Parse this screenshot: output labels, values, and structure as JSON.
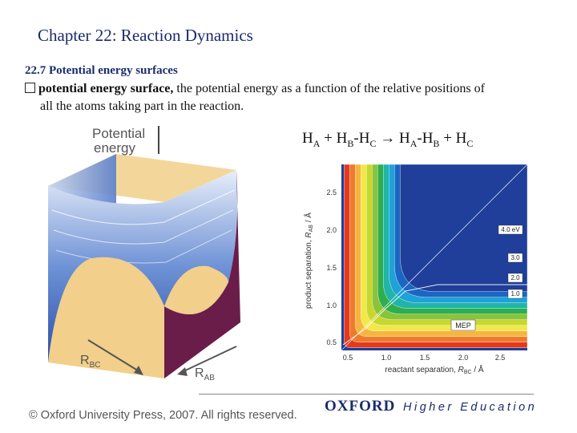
{
  "slide": {
    "title": "Chapter 22: Reaction Dynamics",
    "section": "22.7 Potential energy surfaces",
    "bullet_term": "potential energy surface,",
    "bullet_text_1": " the potential energy as a function of the relative positions of",
    "bullet_text_2": "all the atoms taking part in the reaction."
  },
  "equation": {
    "lhs_a": "H",
    "lhs_a_sub": "A",
    "plus1": " + ",
    "lhs_b": "H",
    "lhs_b_sub": "B",
    "dash1": "-",
    "lhs_c": "H",
    "lhs_c_sub": "C",
    "arrow": " → ",
    "rhs_a": "H",
    "rhs_a_sub": "A",
    "dash2": "-",
    "rhs_b": "H",
    "rhs_b_sub": "B",
    "plus2": " + ",
    "rhs_c": "H",
    "rhs_c_sub": "C"
  },
  "pes_figure": {
    "axis_label_line1": "Potential",
    "axis_label_line2": "energy",
    "rbc_main": "R",
    "rbc_sub": "BC",
    "rab_main": "R",
    "rab_sub": "AB"
  },
  "contour_plot": {
    "y_label_main": "product separation, ",
    "y_label_var": "R",
    "y_label_sub": "AB",
    "y_label_unit": " / Å",
    "x_label_main": "reactant separation, ",
    "x_label_var": "R",
    "x_label_sub": "BC",
    "x_label_unit": " / Å",
    "y_ticks": [
      "2.5",
      "2.0",
      "1.5",
      "1.0",
      "0.5"
    ],
    "x_ticks": [
      "0.5",
      "1.0",
      "1.5",
      "2.0",
      "2.5"
    ],
    "contour_labels": [
      "4.0 eV",
      "3.0",
      "2.0",
      "1.0"
    ],
    "mep_label": "MEP",
    "colors": [
      "#1f3f9a",
      "#1b66c4",
      "#1ea2d8",
      "#20b5a6",
      "#2fae4d",
      "#8ac43a",
      "#c7d72f",
      "#f1e84a",
      "#f6b540",
      "#ef7a2c",
      "#e33a1e"
    ]
  },
  "footer": {
    "copyright": "© Oxford University Press, 2007. All rights reserved.",
    "oxford": "OXFORD",
    "higher_education": "Higher Education"
  }
}
